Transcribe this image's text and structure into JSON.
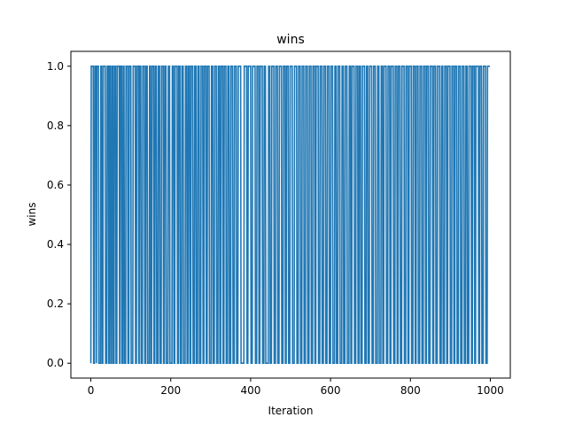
{
  "chart_data": {
    "type": "line",
    "title": "wins",
    "xlabel": "Iteration",
    "ylabel": "wins",
    "xlim": [
      -50,
      1050
    ],
    "ylim": [
      -0.05,
      1.05
    ],
    "xticks": [
      0,
      200,
      400,
      600,
      800,
      1000
    ],
    "yticks": [
      0.0,
      0.2,
      0.4,
      0.6,
      0.8,
      1.0
    ],
    "xtick_labels": [
      "0",
      "200",
      "400",
      "600",
      "800",
      "1000"
    ],
    "ytick_labels": [
      "0.0",
      "0.2",
      "0.4",
      "0.6",
      "0.8",
      "1.0"
    ],
    "grid": false,
    "series": [
      {
        "color": "#1f77b4",
        "x": [
          0,
          999
        ],
        "values_description_binary": true,
        "zero_runs": [
          [
            0,
            0
          ],
          [
            7,
            9
          ],
          [
            14,
            14
          ],
          [
            20,
            24
          ],
          [
            28,
            30
          ],
          [
            37,
            40
          ],
          [
            45,
            46
          ],
          [
            50,
            52
          ],
          [
            56,
            58
          ],
          [
            63,
            65
          ],
          [
            72,
            73
          ],
          [
            78,
            80
          ],
          [
            84,
            87
          ],
          [
            93,
            95
          ],
          [
            101,
            105
          ],
          [
            112,
            114
          ],
          [
            120,
            121
          ],
          [
            126,
            129
          ],
          [
            135,
            137
          ],
          [
            142,
            146
          ],
          [
            150,
            152
          ],
          [
            158,
            160
          ],
          [
            165,
            168
          ],
          [
            173,
            176
          ],
          [
            182,
            184
          ],
          [
            189,
            193
          ],
          [
            198,
            203
          ],
          [
            208,
            210
          ],
          [
            217,
            219
          ],
          [
            224,
            227
          ],
          [
            232,
            236
          ],
          [
            241,
            243
          ],
          [
            248,
            250
          ],
          [
            256,
            259
          ],
          [
            264,
            267
          ],
          [
            272,
            275
          ],
          [
            281,
            283
          ],
          [
            289,
            291
          ],
          [
            297,
            301
          ],
          [
            306,
            309
          ],
          [
            315,
            318
          ],
          [
            323,
            325
          ],
          [
            331,
            333
          ],
          [
            339,
            342
          ],
          [
            347,
            350
          ],
          [
            356,
            359
          ],
          [
            365,
            368
          ],
          [
            376,
            383
          ],
          [
            391,
            393
          ],
          [
            401,
            404
          ],
          [
            412,
            415
          ],
          [
            421,
            423
          ],
          [
            430,
            433
          ],
          [
            438,
            444
          ],
          [
            449,
            452
          ],
          [
            459,
            462
          ],
          [
            468,
            471
          ],
          [
            478,
            481
          ],
          [
            487,
            489
          ],
          [
            495,
            498
          ],
          [
            505,
            509
          ],
          [
            516,
            519
          ],
          [
            525,
            528
          ],
          [
            534,
            537
          ],
          [
            543,
            546
          ],
          [
            552,
            555
          ],
          [
            561,
            563
          ],
          [
            570,
            573
          ],
          [
            579,
            582
          ],
          [
            588,
            591
          ],
          [
            597,
            600
          ],
          [
            606,
            610
          ],
          [
            615,
            618
          ],
          [
            624,
            628
          ],
          [
            633,
            636
          ],
          [
            642,
            646
          ],
          [
            651,
            653
          ],
          [
            660,
            663
          ],
          [
            669,
            671
          ],
          [
            676,
            679
          ],
          [
            686,
            689
          ],
          [
            694,
            697
          ],
          [
            704,
            707
          ],
          [
            713,
            717
          ],
          [
            722,
            726
          ],
          [
            731,
            733
          ],
          [
            740,
            743
          ],
          [
            749,
            751
          ],
          [
            758,
            761
          ],
          [
            767,
            769
          ],
          [
            775,
            778
          ],
          [
            785,
            788
          ],
          [
            794,
            796
          ],
          [
            803,
            806
          ],
          [
            812,
            814
          ],
          [
            820,
            823
          ],
          [
            829,
            832
          ],
          [
            838,
            840
          ],
          [
            846,
            849
          ],
          [
            856,
            858
          ],
          [
            864,
            867
          ],
          [
            874,
            877
          ],
          [
            882,
            885
          ],
          [
            891,
            893
          ],
          [
            900,
            903
          ],
          [
            909,
            911
          ],
          [
            917,
            920
          ],
          [
            926,
            929
          ],
          [
            935,
            938
          ],
          [
            943,
            946
          ],
          [
            953,
            955
          ],
          [
            961,
            963
          ],
          [
            971,
            973
          ],
          [
            979,
            982
          ],
          [
            989,
            992
          ]
        ]
      }
    ]
  }
}
